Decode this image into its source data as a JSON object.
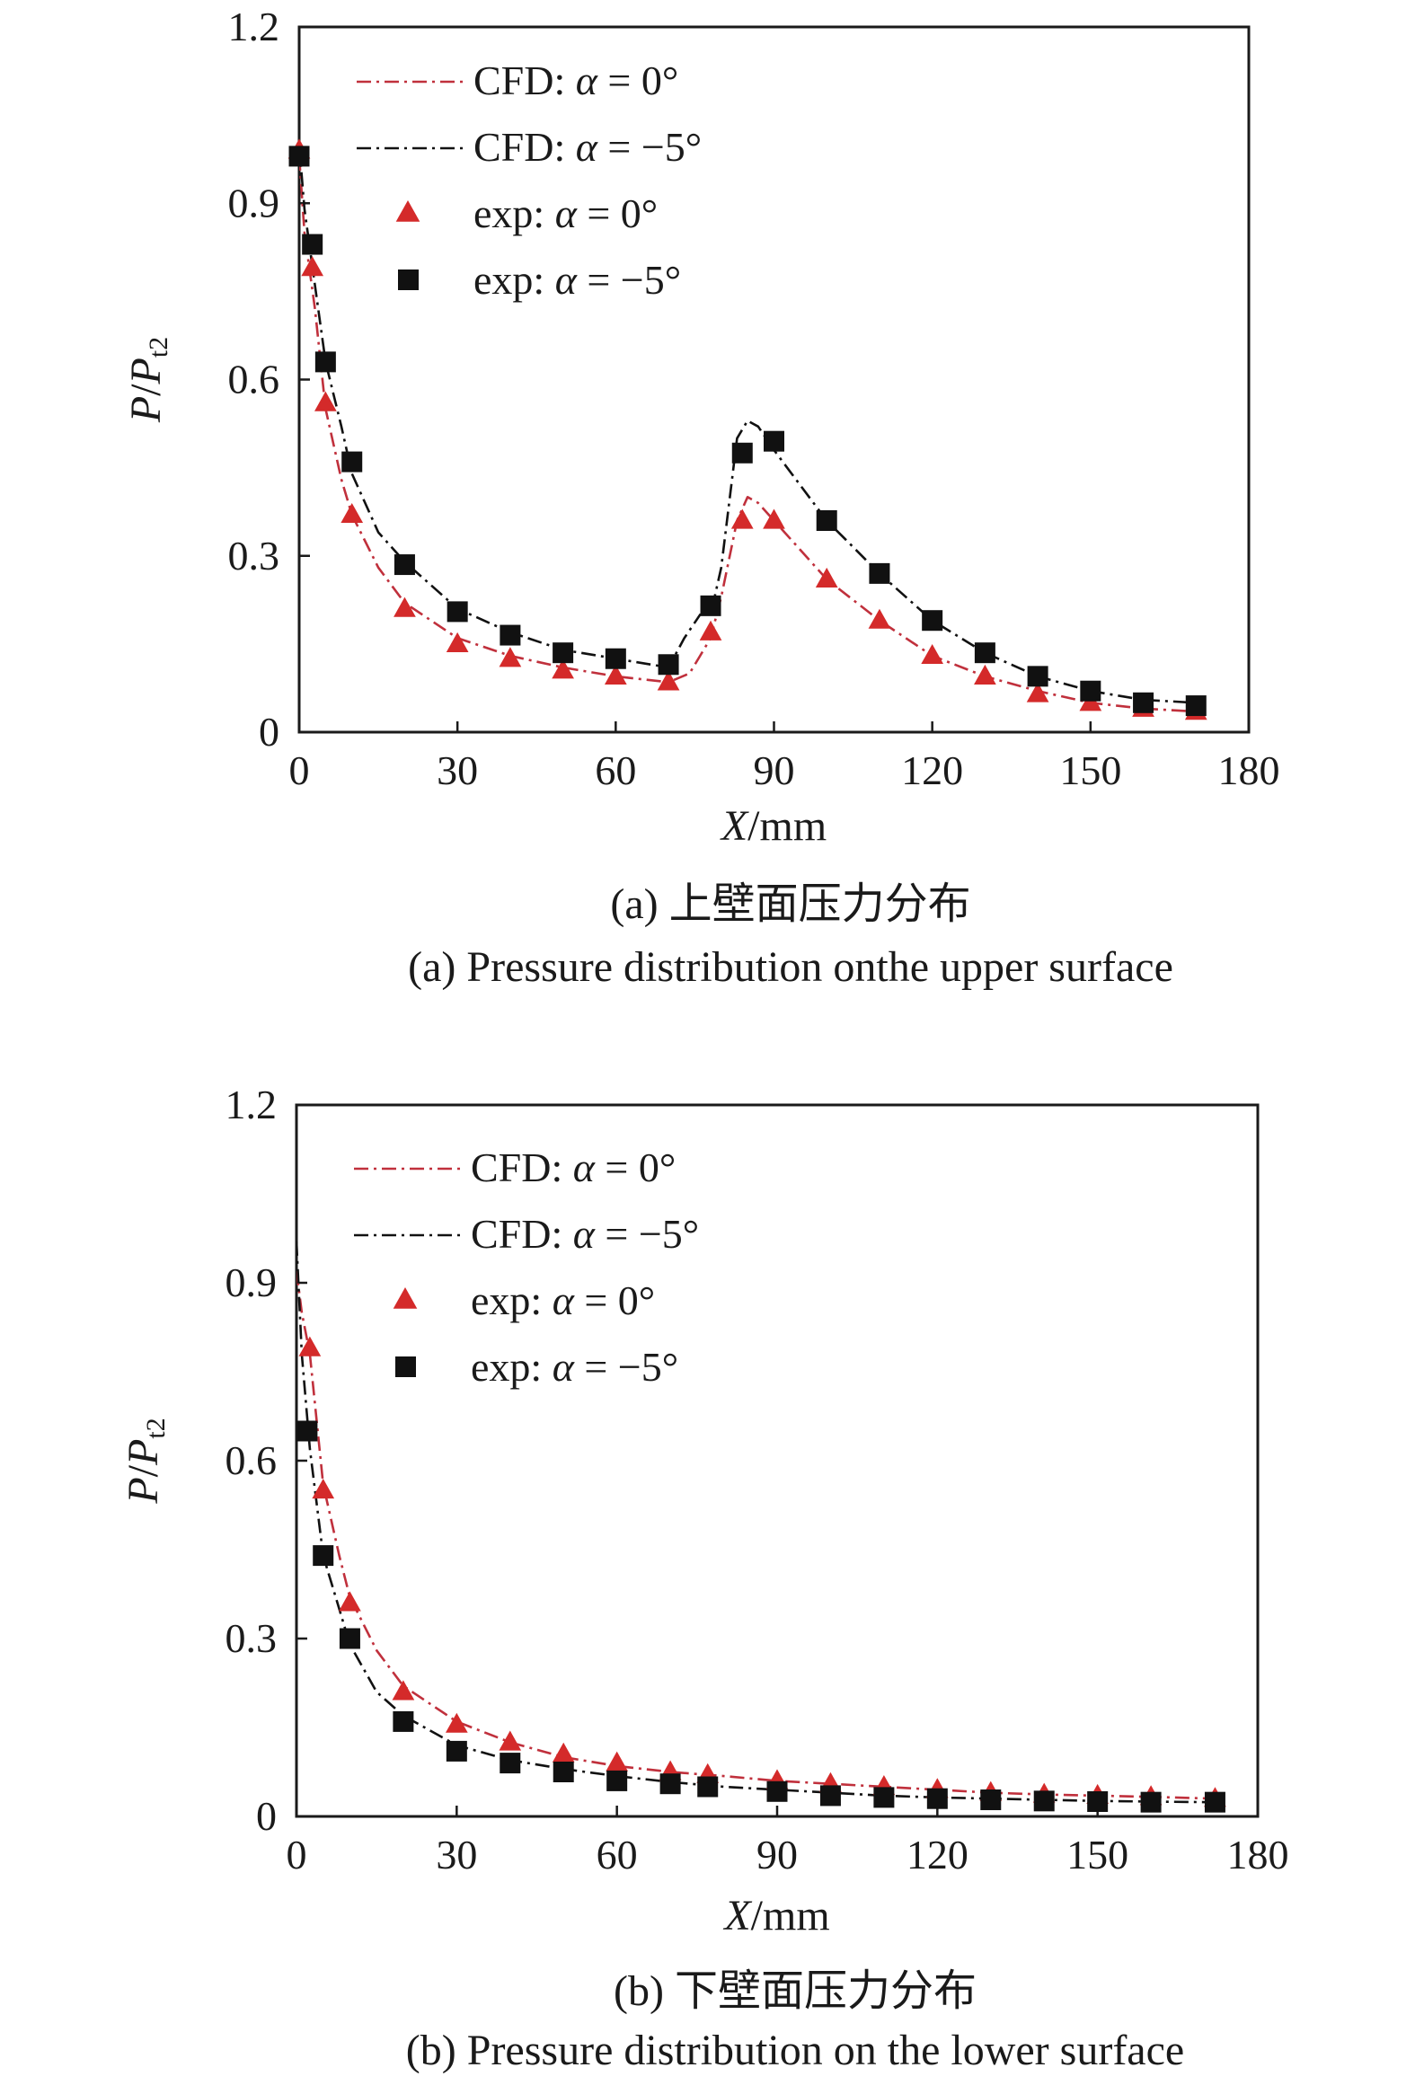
{
  "chart_data": [
    {
      "id": "a",
      "type": "line",
      "caption_cn": "(a) 上壁面压力分布",
      "caption_en": "(a) Pressure distribution onthe upper surface",
      "xlabel_var": "X",
      "xlabel_unit": "/mm",
      "ylabel_var": "P",
      "ylabel_sep": "/",
      "ylabel_den": "P",
      "ylabel_sub": "t2",
      "xlim": [
        0,
        180
      ],
      "ylim": [
        0,
        1.2
      ],
      "xticks": [
        "0",
        "30",
        "60",
        "90",
        "120",
        "150",
        "180"
      ],
      "yticks": [
        "0",
        "0.3",
        "0.6",
        "0.9",
        "1.2"
      ],
      "legend_position": "top-left",
      "legend": [
        {
          "prefix": "CFD: ",
          "var": "α",
          "suffix": " = 0°",
          "kind": "line",
          "color": "#c0303c",
          "dash": "dashdot"
        },
        {
          "prefix": "CFD: ",
          "var": "α",
          "suffix": " = −5°",
          "kind": "line",
          "color": "#111111",
          "dash": "dashdot"
        },
        {
          "prefix": "exp: ",
          "var": "α",
          "suffix": " = 0°",
          "kind": "triangle",
          "color": "#d42a2a"
        },
        {
          "prefix": "exp: ",
          "var": "α",
          "suffix": " = −5°",
          "kind": "square",
          "color": "#111111"
        }
      ],
      "series": [
        {
          "kind": "line",
          "color": "#c0303c",
          "x": [
            0,
            1,
            3,
            5,
            8,
            10,
            15,
            20,
            30,
            40,
            50,
            60,
            70,
            74,
            76,
            78,
            80,
            83,
            85,
            87,
            90,
            95,
            100,
            110,
            120,
            130,
            140,
            150,
            160,
            170
          ],
          "y": [
            0.98,
            0.85,
            0.72,
            0.55,
            0.43,
            0.37,
            0.28,
            0.22,
            0.16,
            0.13,
            0.11,
            0.095,
            0.085,
            0.1,
            0.13,
            0.16,
            0.23,
            0.36,
            0.4,
            0.39,
            0.36,
            0.31,
            0.26,
            0.19,
            0.13,
            0.095,
            0.07,
            0.05,
            0.04,
            0.035
          ]
        },
        {
          "kind": "line",
          "color": "#111111",
          "x": [
            0,
            1,
            3,
            5,
            8,
            10,
            15,
            20,
            30,
            40,
            50,
            60,
            70,
            73,
            76,
            78,
            80,
            83,
            85,
            87,
            90,
            95,
            100,
            110,
            120,
            130,
            140,
            150,
            160,
            170
          ],
          "y": [
            1.0,
            0.89,
            0.76,
            0.63,
            0.52,
            0.44,
            0.34,
            0.29,
            0.21,
            0.17,
            0.14,
            0.125,
            0.11,
            0.16,
            0.2,
            0.2,
            0.28,
            0.5,
            0.53,
            0.52,
            0.48,
            0.42,
            0.36,
            0.27,
            0.19,
            0.135,
            0.095,
            0.07,
            0.055,
            0.05
          ]
        },
        {
          "kind": "triangle",
          "color": "#d42a2a",
          "x": [
            0,
            2.5,
            5,
            10,
            20,
            30,
            40,
            50,
            60,
            70,
            78,
            84,
            90,
            100,
            110,
            120,
            130,
            140,
            150,
            160,
            170
          ],
          "y": [
            0.99,
            0.79,
            0.56,
            0.37,
            0.21,
            0.15,
            0.125,
            0.105,
            0.095,
            0.085,
            0.17,
            0.36,
            0.36,
            0.26,
            0.19,
            0.13,
            0.095,
            0.065,
            0.05,
            0.04,
            0.035
          ]
        },
        {
          "kind": "square",
          "color": "#111111",
          "x": [
            0,
            2.5,
            5,
            10,
            20,
            30,
            40,
            50,
            60,
            70,
            78,
            84,
            90,
            100,
            110,
            120,
            130,
            140,
            150,
            160,
            170
          ],
          "y": [
            0.98,
            0.83,
            0.63,
            0.46,
            0.285,
            0.205,
            0.165,
            0.135,
            0.125,
            0.115,
            0.215,
            0.475,
            0.495,
            0.36,
            0.27,
            0.19,
            0.135,
            0.095,
            0.07,
            0.05,
            0.045
          ]
        }
      ]
    },
    {
      "id": "b",
      "type": "line",
      "caption_cn": "(b) 下壁面压力分布",
      "caption_en": "(b) Pressure distribution on the lower surface",
      "xlabel_var": "X",
      "xlabel_unit": "/mm",
      "ylabel_var": "P",
      "ylabel_sep": "/",
      "ylabel_den": "P",
      "ylabel_sub": "t2",
      "xlim": [
        0,
        180
      ],
      "ylim": [
        0,
        1.2
      ],
      "xticks": [
        "0",
        "30",
        "60",
        "90",
        "120",
        "150",
        "180"
      ],
      "yticks": [
        "0",
        "0.3",
        "0.6",
        "0.9",
        "1.2"
      ],
      "legend_position": "top-left",
      "legend": [
        {
          "prefix": "CFD: ",
          "var": "α",
          "suffix": " = 0°",
          "kind": "line",
          "color": "#c0303c",
          "dash": "dashdot"
        },
        {
          "prefix": "CFD: ",
          "var": "α",
          "suffix": " = −5°",
          "kind": "line",
          "color": "#111111",
          "dash": "dashdot"
        },
        {
          "prefix": "exp: ",
          "var": "α",
          "suffix": " = 0°",
          "kind": "triangle",
          "color": "#d42a2a"
        },
        {
          "prefix": "exp: ",
          "var": "α",
          "suffix": " = −5°",
          "kind": "square",
          "color": "#111111"
        }
      ],
      "series": [
        {
          "kind": "line",
          "color": "#c0303c",
          "x": [
            0,
            1,
            2.5,
            5,
            8,
            10,
            15,
            20,
            30,
            40,
            50,
            60,
            70,
            80,
            90,
            100,
            110,
            120,
            130,
            140,
            150,
            160,
            172
          ],
          "y": [
            0.92,
            0.85,
            0.78,
            0.56,
            0.44,
            0.37,
            0.28,
            0.22,
            0.16,
            0.125,
            0.1,
            0.085,
            0.075,
            0.068,
            0.06,
            0.055,
            0.05,
            0.045,
            0.04,
            0.037,
            0.035,
            0.033,
            0.03
          ]
        },
        {
          "kind": "line",
          "color": "#111111",
          "x": [
            0,
            1,
            2.5,
            5,
            8,
            10,
            15,
            20,
            30,
            40,
            50,
            60,
            70,
            80,
            90,
            100,
            110,
            120,
            130,
            140,
            150,
            160,
            172
          ],
          "y": [
            0.97,
            0.78,
            0.62,
            0.44,
            0.35,
            0.29,
            0.21,
            0.17,
            0.12,
            0.095,
            0.08,
            0.068,
            0.058,
            0.05,
            0.045,
            0.04,
            0.035,
            0.032,
            0.03,
            0.028,
            0.026,
            0.025,
            0.024
          ]
        },
        {
          "kind": "triangle",
          "color": "#d42a2a",
          "x": [
            2.5,
            5,
            10,
            20,
            30,
            40,
            50,
            60,
            70,
            77,
            90,
            100,
            110,
            120,
            130,
            140,
            150,
            160,
            172
          ],
          "y": [
            0.79,
            0.55,
            0.36,
            0.21,
            0.155,
            0.125,
            0.105,
            0.09,
            0.075,
            0.07,
            0.06,
            0.055,
            0.05,
            0.045,
            0.04,
            0.037,
            0.035,
            0.033,
            0.03
          ]
        },
        {
          "kind": "square",
          "color": "#111111",
          "x": [
            2,
            5,
            10,
            20,
            30,
            40,
            50,
            60,
            70,
            77,
            90,
            100,
            110,
            120,
            130,
            140,
            150,
            160,
            172
          ],
          "y": [
            0.65,
            0.44,
            0.3,
            0.16,
            0.11,
            0.09,
            0.075,
            0.06,
            0.055,
            0.05,
            0.042,
            0.035,
            0.032,
            0.03,
            0.028,
            0.026,
            0.025,
            0.024,
            0.024
          ]
        }
      ]
    }
  ]
}
